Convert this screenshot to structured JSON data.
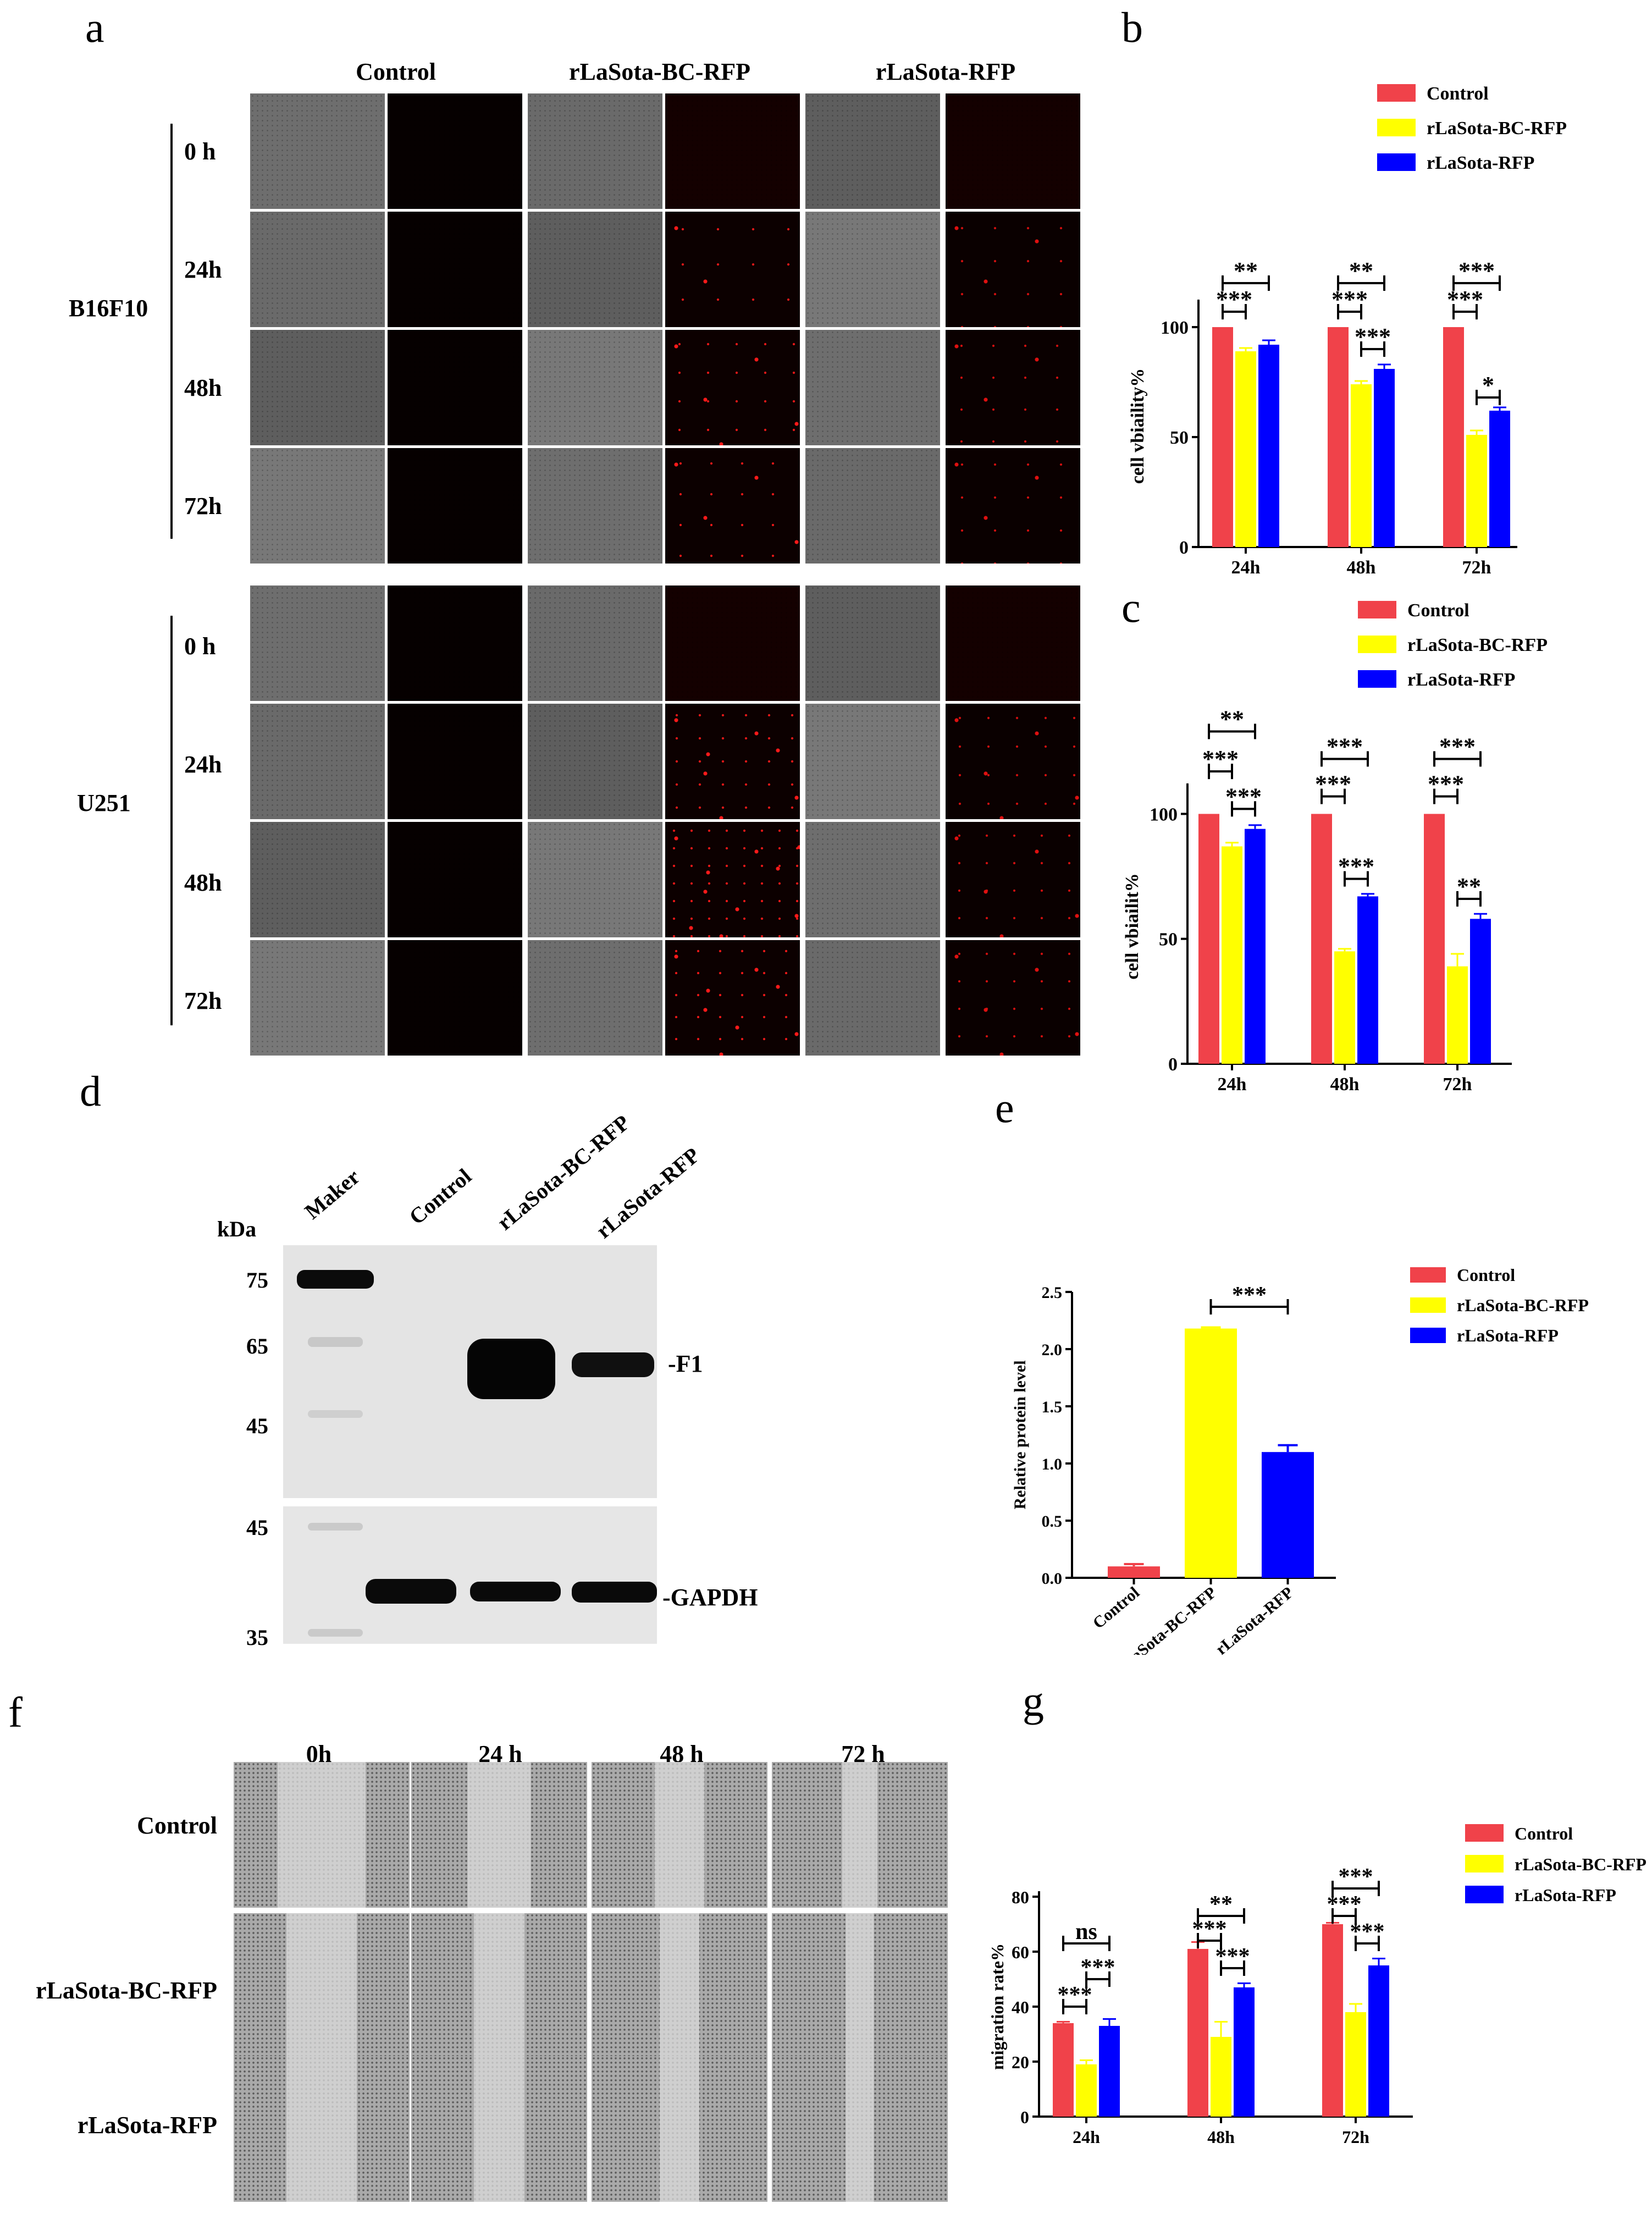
{
  "panel_letters": {
    "a": "a",
    "b": "b",
    "c": "c",
    "d": "d",
    "e": "e",
    "f": "f",
    "g": "g"
  },
  "panel_a": {
    "columns": [
      "Control",
      "rLaSota-BC-RFP",
      "rLaSota-RFP"
    ],
    "cell_lines": [
      "B16F10",
      "U251"
    ],
    "timepoints": [
      "0 h",
      "24h",
      "48h",
      "72h"
    ]
  },
  "panel_d": {
    "kda_label": "kDa",
    "lanes": [
      "Maker",
      "Control",
      "rLaSota-BC-RFP",
      "rLaSota-RFP"
    ],
    "top_markers": [
      "75",
      "65",
      "45"
    ],
    "bottom_markers": [
      "45",
      "35"
    ],
    "band_labels": [
      "-F1",
      "-GAPDH"
    ]
  },
  "panel_f": {
    "columns": [
      "0h",
      "24 h",
      "48 h",
      "72 h"
    ],
    "rows": [
      "Control",
      "rLaSota-BC-RFP",
      "rLaSota-RFP"
    ]
  },
  "colors": {
    "control": "#f0424a",
    "bc": "#ffff00",
    "rfp": "#0000ff"
  },
  "chart_data": [
    {
      "id": "b",
      "type": "bar",
      "categories": [
        "24h",
        "48h",
        "72h"
      ],
      "ylabel": "cell vbiaility%",
      "ylim": [
        0,
        110
      ],
      "yticks": [
        0,
        50,
        100
      ],
      "series": [
        {
          "name": "Control",
          "values": [
            100,
            100,
            100
          ],
          "errors": [
            0,
            0,
            0
          ]
        },
        {
          "name": "rLaSota-BC-RFP",
          "values": [
            89,
            74,
            51
          ],
          "errors": [
            1.5,
            1.5,
            2
          ]
        },
        {
          "name": "rLaSota-RFP",
          "values": [
            92,
            81,
            62
          ],
          "errors": [
            2,
            2,
            1.5
          ]
        }
      ],
      "legend_position": "top-right",
      "significance": [
        {
          "label": "**",
          "cat": 0,
          "from": 0,
          "to": 2,
          "y": 120
        },
        {
          "label": "***",
          "cat": 0,
          "from": 0,
          "to": 1,
          "y": 107
        },
        {
          "label": "**",
          "cat": 1,
          "from": 0,
          "to": 2,
          "y": 120
        },
        {
          "label": "***",
          "cat": 1,
          "from": 0,
          "to": 1,
          "y": 107
        },
        {
          "label": "***",
          "cat": 1,
          "from": 1,
          "to": 2,
          "y": 90
        },
        {
          "label": "***",
          "cat": 2,
          "from": 0,
          "to": 2,
          "y": 120
        },
        {
          "label": "***",
          "cat": 2,
          "from": 0,
          "to": 1,
          "y": 107
        },
        {
          "label": "*",
          "cat": 2,
          "from": 1,
          "to": 2,
          "y": 68
        }
      ]
    },
    {
      "id": "c",
      "type": "bar",
      "categories": [
        "24h",
        "48h",
        "72h"
      ],
      "ylabel": "cell vbiailit%",
      "ylim": [
        0,
        110
      ],
      "yticks": [
        0,
        50,
        100
      ],
      "series": [
        {
          "name": "Control",
          "values": [
            100,
            100,
            100
          ],
          "errors": [
            0,
            0,
            0
          ]
        },
        {
          "name": "rLaSota-BC-RFP",
          "values": [
            87,
            45,
            39
          ],
          "errors": [
            1.5,
            1,
            5
          ]
        },
        {
          "name": "rLaSota-RFP",
          "values": [
            94,
            67,
            58
          ],
          "errors": [
            1.5,
            1,
            2
          ]
        }
      ],
      "legend_position": "top-right",
      "significance": [
        {
          "label": "**",
          "cat": 0,
          "from": 0,
          "to": 2,
          "y": 133
        },
        {
          "label": "***",
          "cat": 0,
          "from": 0,
          "to": 1,
          "y": 117
        },
        {
          "label": "***",
          "cat": 0,
          "from": 1,
          "to": 2,
          "y": 102
        },
        {
          "label": "***",
          "cat": 1,
          "from": 0,
          "to": 2,
          "y": 122
        },
        {
          "label": "***",
          "cat": 1,
          "from": 0,
          "to": 1,
          "y": 107
        },
        {
          "label": "***",
          "cat": 1,
          "from": 1,
          "to": 2,
          "y": 74
        },
        {
          "label": "***",
          "cat": 2,
          "from": 0,
          "to": 2,
          "y": 122
        },
        {
          "label": "***",
          "cat": 2,
          "from": 0,
          "to": 1,
          "y": 107
        },
        {
          "label": "**",
          "cat": 2,
          "from": 1,
          "to": 2,
          "y": 66
        }
      ]
    },
    {
      "id": "e",
      "type": "bar",
      "categories": [
        "Control",
        "rLaSota-BC-RFP",
        "rLaSota-RFP"
      ],
      "ylabel": "Relative protein level",
      "ylim": [
        0,
        2.5
      ],
      "yticks": [
        "0.0",
        "0.5",
        "1.0",
        "1.5",
        "2.0",
        "2.5"
      ],
      "values": [
        0.1,
        2.18,
        1.1
      ],
      "errors": [
        0.02,
        0.01,
        0.06
      ],
      "series_names": [
        "Control",
        "rLaSota-BC-RFP",
        "rLaSota-RFP"
      ],
      "legend_position": "top-right",
      "significance": [
        {
          "label": "***",
          "from": 1,
          "to": 2,
          "y": 2.37
        }
      ]
    },
    {
      "id": "g",
      "type": "bar",
      "categories": [
        "24h",
        "48h",
        "72h"
      ],
      "ylabel": "migration rate%",
      "ylim": [
        0,
        80
      ],
      "yticks": [
        0,
        20,
        40,
        60,
        80
      ],
      "series": [
        {
          "name": "Control",
          "values": [
            34,
            61,
            70
          ],
          "errors": [
            0.5,
            2.5,
            0.5
          ]
        },
        {
          "name": "rLaSota-BC-RFP",
          "values": [
            19,
            29,
            38
          ],
          "errors": [
            1.5,
            5.5,
            3
          ]
        },
        {
          "name": "rLaSota-RFP",
          "values": [
            33,
            47,
            55
          ],
          "errors": [
            2.5,
            1.5,
            2.5
          ]
        }
      ],
      "legend_position": "top-right",
      "significance": [
        {
          "label": "ns",
          "cat": 0,
          "from": 0,
          "to": 2,
          "y": 63
        },
        {
          "label": "***",
          "cat": 0,
          "from": 0,
          "to": 1,
          "y": 40
        },
        {
          "label": "***",
          "cat": 0,
          "from": 1,
          "to": 2,
          "y": 50
        },
        {
          "label": "**",
          "cat": 1,
          "from": 0,
          "to": 2,
          "y": 73
        },
        {
          "label": "***",
          "cat": 1,
          "from": 0,
          "to": 1,
          "y": 64
        },
        {
          "label": "***",
          "cat": 1,
          "from": 1,
          "to": 2,
          "y": 54
        },
        {
          "label": "***",
          "cat": 2,
          "from": 0,
          "to": 2,
          "y": 83
        },
        {
          "label": "***",
          "cat": 2,
          "from": 0,
          "to": 1,
          "y": 73
        },
        {
          "label": "***",
          "cat": 2,
          "from": 1,
          "to": 2,
          "y": 63
        }
      ]
    }
  ]
}
